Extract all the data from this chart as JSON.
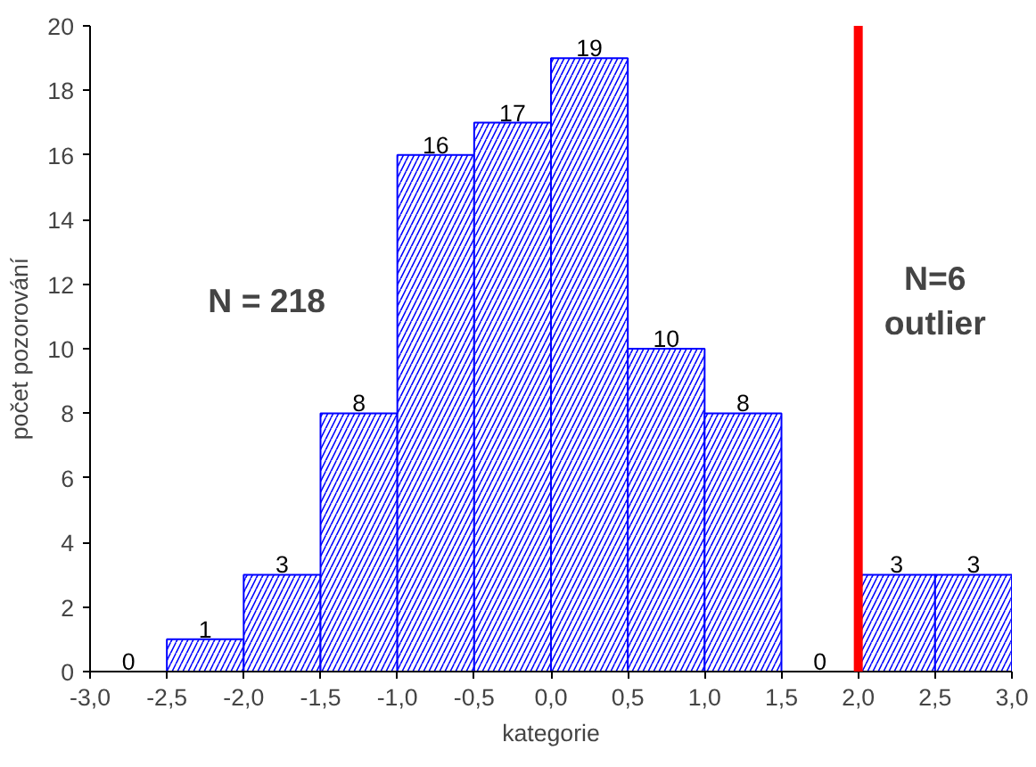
{
  "chart_data": {
    "type": "histogram",
    "xlabel": "kategorie",
    "ylabel": "počet pozorování",
    "bins": [
      -3.0,
      -2.5,
      -2.0,
      -1.5,
      -1.0,
      -0.5,
      0.0,
      0.5,
      1.0,
      1.5,
      2.0,
      2.5,
      3.0
    ],
    "values": [
      0,
      1,
      3,
      8,
      16,
      17,
      19,
      10,
      8,
      0,
      3,
      3
    ],
    "color": "#0000ff",
    "data_labels": true,
    "xlim": [
      -3.0,
      3.0
    ],
    "xticks": [
      {
        "value": -3.0,
        "label": "-3,0"
      },
      {
        "value": -2.5,
        "label": "-2,5"
      },
      {
        "value": -2.0,
        "label": "-2,0"
      },
      {
        "value": -1.5,
        "label": "-1,5"
      },
      {
        "value": -1.0,
        "label": "-1,0"
      },
      {
        "value": -0.5,
        "label": "-0,5"
      },
      {
        "value": 0.0,
        "label": "0,0"
      },
      {
        "value": 0.5,
        "label": "0,5"
      },
      {
        "value": 1.0,
        "label": "1,0"
      },
      {
        "value": 1.5,
        "label": "1,5"
      },
      {
        "value": 2.0,
        "label": "2,0"
      },
      {
        "value": 2.5,
        "label": "2,5"
      },
      {
        "value": 3.0,
        "label": "3,0"
      }
    ],
    "ylim": [
      0,
      20
    ],
    "yticks": [
      0,
      2,
      4,
      6,
      8,
      10,
      12,
      14,
      16,
      18,
      20
    ],
    "ref_lines": [
      {
        "axis": "x",
        "value": 2.0,
        "color": "#ff0000"
      }
    ],
    "annotations": [
      "N = 218",
      "N=6\noutlier"
    ],
    "grid": false
  }
}
